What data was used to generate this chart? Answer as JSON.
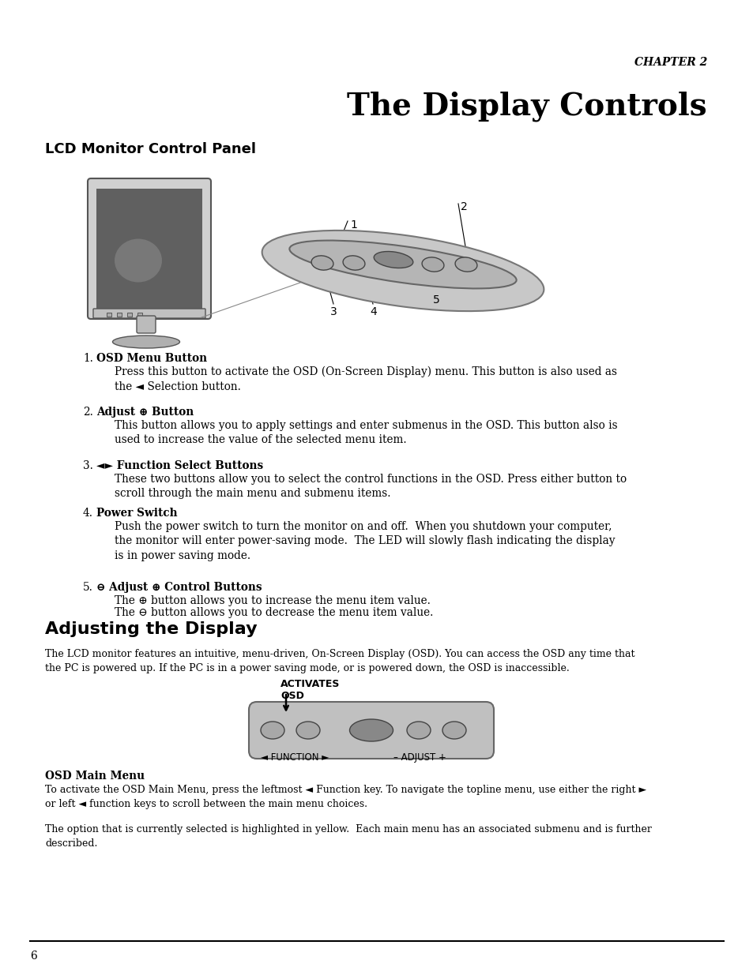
{
  "chapter_label": "CHAPTER 2",
  "title": "The Display Controls",
  "section1_title": "LCD Monitor Control Panel",
  "section2_title": "Adjusting the Display",
  "item1_bold": "OSD Menu Button",
  "item1_text": "Press this button to activate the OSD (On-Screen Display) menu. This button is also used as\nthe ◄ Selection button.",
  "item2_bold": "Adjust ⊕ Button",
  "item2_text": "This button allows you to apply settings and enter submenus in the OSD. This button also is\nused to increase the value of the selected menu item.",
  "item3_bold": "◄► Function Select Buttons",
  "item3_text": "These two buttons allow you to select the control functions in the OSD. Press either button to\nscroll through the main menu and submenu items.",
  "item4_bold": "Power Switch",
  "item4_text": "Push the power switch to turn the monitor on and off.  When you shutdown your computer,\nthe monitor will enter power-saving mode.  The LED will slowly flash indicating the display\nis in power saving mode.",
  "item5_bold": "⊖ Adjust ⊕ Control Buttons",
  "item5_text1": "The ⊕ button allows you to increase the menu item value.",
  "item5_text2": "The ⊖ button allows you to decrease the menu item value.",
  "adjust_intro": "The LCD monitor features an intuitive, menu-driven, On-Screen Display (OSD). You can access the OSD any time that\nthe PC is powered up. If the PC is in a power saving mode, or is powered down, the OSD is inaccessible.",
  "activates_label": "ACTIVATES\nOSD",
  "function_label": "◄ FUNCTION ►",
  "adjust_label": "– ADJUST +",
  "osd_main_menu_bold": "OSD Main Menu",
  "osd_main_menu_text1": "To activate the OSD Main Menu, press the leftmost ◄ Function key. To navigate the topline menu, use either the right ►\nor left ◄ function keys to scroll between the main menu choices.",
  "osd_main_menu_text2": "The option that is currently selected is highlighted in yellow.  Each main menu has an associated submenu and is further\ndescribed.",
  "page_number": "6",
  "bg_color": "#ffffff",
  "text_color": "#000000"
}
